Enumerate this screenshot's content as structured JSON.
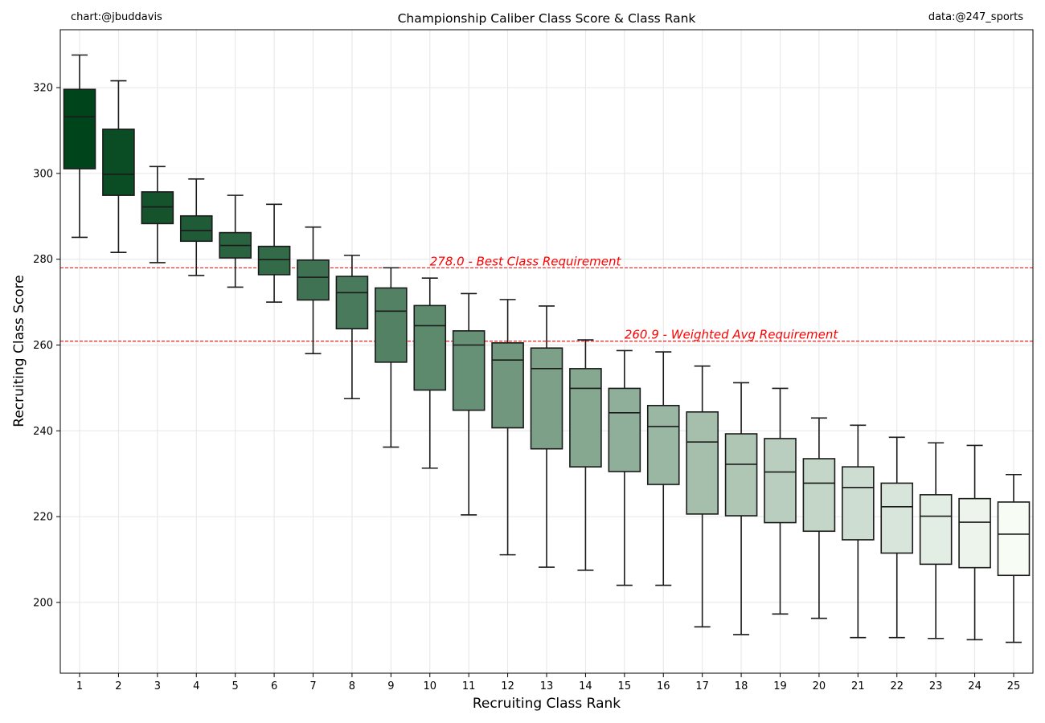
{
  "header": {
    "credit_left": "chart:@jbuddavis",
    "credit_right": "data:@247_sports"
  },
  "chart_data": {
    "type": "box",
    "title": "Championship Caliber Class Score & Class Rank",
    "xlabel": "Recruiting Class Rank",
    "ylabel": "Recruiting Class Score",
    "ylim": [
      183.5,
      333.5
    ],
    "y_ticks": [
      200,
      220,
      240,
      260,
      280,
      300,
      320
    ],
    "grid": true,
    "categories": [
      "1",
      "2",
      "3",
      "4",
      "5",
      "6",
      "7",
      "8",
      "9",
      "10",
      "11",
      "12",
      "13",
      "14",
      "15",
      "16",
      "17",
      "18",
      "19",
      "20",
      "21",
      "22",
      "23",
      "24",
      "25"
    ],
    "boxes": [
      {
        "rank": "1",
        "min": 285.1,
        "q1": 301.1,
        "median": 313.2,
        "q3": 319.6,
        "max": 327.6
      },
      {
        "rank": "2",
        "min": 281.6,
        "q1": 294.9,
        "median": 299.8,
        "q3": 310.3,
        "max": 321.6
      },
      {
        "rank": "3",
        "min": 279.2,
        "q1": 288.3,
        "median": 292.2,
        "q3": 295.7,
        "max": 301.6
      },
      {
        "rank": "4",
        "min": 276.2,
        "q1": 284.2,
        "median": 286.7,
        "q3": 290.1,
        "max": 298.7
      },
      {
        "rank": "5",
        "min": 273.5,
        "q1": 280.3,
        "median": 283.2,
        "q3": 286.2,
        "max": 294.9
      },
      {
        "rank": "6",
        "min": 270.0,
        "q1": 276.4,
        "median": 279.9,
        "q3": 283.0,
        "max": 292.8
      },
      {
        "rank": "7",
        "min": 258.0,
        "q1": 270.5,
        "median": 275.8,
        "q3": 279.8,
        "max": 287.5
      },
      {
        "rank": "8",
        "min": 247.5,
        "q1": 263.8,
        "median": 272.2,
        "q3": 276.0,
        "max": 280.9
      },
      {
        "rank": "9",
        "min": 236.2,
        "q1": 256.0,
        "median": 267.9,
        "q3": 273.3,
        "max": 278.0
      },
      {
        "rank": "10",
        "min": 231.3,
        "q1": 249.5,
        "median": 264.5,
        "q3": 269.2,
        "max": 275.6
      },
      {
        "rank": "11",
        "min": 220.4,
        "q1": 244.8,
        "median": 260.0,
        "q3": 263.3,
        "max": 272.0
      },
      {
        "rank": "12",
        "min": 211.1,
        "q1": 240.7,
        "median": 256.5,
        "q3": 260.5,
        "max": 270.6
      },
      {
        "rank": "13",
        "min": 208.2,
        "q1": 235.8,
        "median": 254.5,
        "q3": 259.3,
        "max": 269.1
      },
      {
        "rank": "14",
        "min": 207.5,
        "q1": 231.6,
        "median": 249.9,
        "q3": 254.5,
        "max": 261.2
      },
      {
        "rank": "15",
        "min": 204.0,
        "q1": 230.5,
        "median": 244.2,
        "q3": 249.9,
        "max": 258.7
      },
      {
        "rank": "16",
        "min": 204.0,
        "q1": 227.5,
        "median": 241.0,
        "q3": 245.9,
        "max": 258.4
      },
      {
        "rank": "17",
        "min": 194.3,
        "q1": 220.6,
        "median": 237.4,
        "q3": 244.4,
        "max": 255.1
      },
      {
        "rank": "18",
        "min": 192.5,
        "q1": 220.2,
        "median": 232.2,
        "q3": 239.3,
        "max": 251.2
      },
      {
        "rank": "19",
        "min": 197.3,
        "q1": 218.6,
        "median": 230.4,
        "q3": 238.2,
        "max": 249.9
      },
      {
        "rank": "20",
        "min": 196.3,
        "q1": 216.6,
        "median": 227.8,
        "q3": 233.5,
        "max": 243.0
      },
      {
        "rank": "21",
        "min": 191.8,
        "q1": 214.6,
        "median": 226.8,
        "q3": 231.6,
        "max": 241.3
      },
      {
        "rank": "22",
        "min": 191.8,
        "q1": 211.5,
        "median": 222.3,
        "q3": 227.8,
        "max": 238.5
      },
      {
        "rank": "23",
        "min": 191.6,
        "q1": 208.9,
        "median": 220.1,
        "q3": 225.1,
        "max": 237.2
      },
      {
        "rank": "24",
        "min": 191.3,
        "q1": 208.1,
        "median": 218.7,
        "q3": 224.2,
        "max": 236.6
      },
      {
        "rank": "25",
        "min": 190.7,
        "q1": 206.3,
        "median": 215.9,
        "q3": 223.4,
        "max": 229.8
      }
    ],
    "reference_lines": [
      {
        "label": "278.0 - Best Class Requirement",
        "value": 278.0,
        "color": "#ff0000",
        "label_at_rank": 10
      },
      {
        "label": "260.9 - Weighted Avg Requirement",
        "value": 260.9,
        "color": "#ff0000",
        "label_at_rank": 15
      }
    ],
    "colors": {
      "palette_start": "#00441b",
      "palette_end": "#f7fcf5",
      "box_edge": "#1a1a1a",
      "grid": "#e6e6e6"
    }
  }
}
